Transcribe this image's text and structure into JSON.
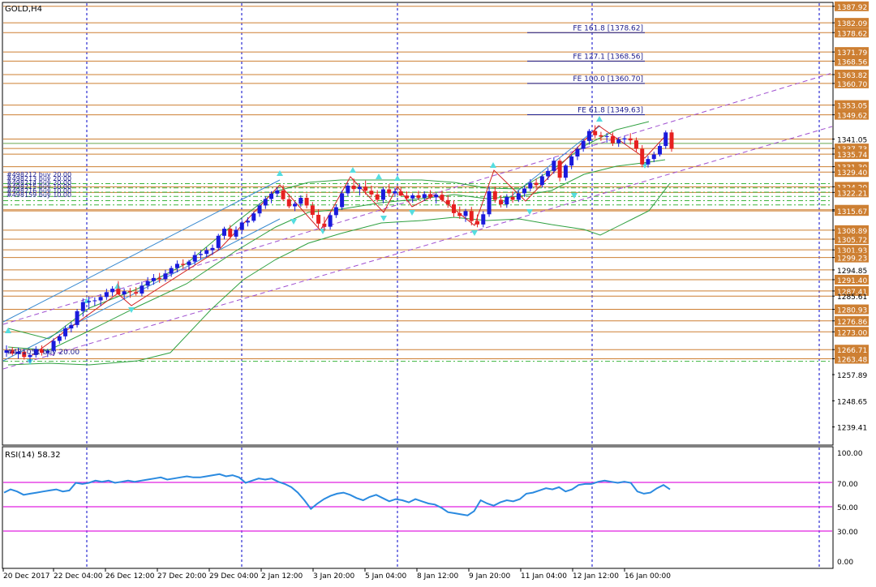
{
  "main_panel": {
    "symbol_label": "GOLD,H4",
    "price_labels": [
      "1387.92",
      "1382.09",
      "1378.62",
      "1371.79",
      "1368.56",
      "1363.82",
      "1360.70",
      "1353.05",
      "1349.62",
      "1341.05",
      "1337.73",
      "1335.74",
      "1331.30",
      "1329.40",
      "1324.20",
      "1322.21",
      "1316.09",
      "1315.67",
      "1308.89",
      "1305.72",
      "1301.93",
      "1299.23",
      "1294.85",
      "1291.40",
      "1287.41",
      "1285.61",
      "1280.93",
      "1276.86",
      "1273.00",
      "1266.71",
      "1263.48",
      "1257.89",
      "1248.65",
      "1239.41"
    ],
    "fibo_labels": [
      "FE 161.8 [1378.62]",
      "FE 127.1 [1368.56]",
      "FE 100.0 [1360.70]",
      "FE 61.8 [1349.63]"
    ],
    "order_labels": [
      "#498212 buy 20.00",
      "#498213 buy 20.00",
      "#498214 buy 20.00",
      "#498215 buy 10.00",
      "#498216 buy 10.00",
      "#498159 buy 10.00"
    ],
    "order_label_bottom": "#481051 buy 20.00"
  },
  "rsi_panel": {
    "label": "RSI(14) 58.32",
    "levels": [
      "100.00",
      "70.00",
      "50.00",
      "30.00",
      "0.00"
    ]
  },
  "time_labels": [
    "20 Dec 2017",
    "22 Dec 04:00",
    "26 Dec 12:00",
    "27 Dec 20:00",
    "29 Dec 04:00",
    "2 Jan 12:00",
    "3 Jan 20:00",
    "5 Jan 04:00",
    "8 Jan 12:00",
    "9 Jan 20:00",
    "11 Jan 04:00",
    "12 Jan 12:00",
    "16 Jan 00:00"
  ],
  "colors": {
    "bull": "#1a1adc",
    "bear": "#e62020",
    "level_line": "#cd7f32",
    "order_line": "#3cb43c",
    "channel": "#a050d0",
    "rsi": "#2a8ae0",
    "rsi_level": "#e020e0",
    "grid": "#0000c8"
  },
  "chart_data": {
    "type": "candlestick",
    "symbol": "GOLD",
    "timeframe": "H4",
    "ylim": [
      1233,
      1389
    ],
    "yticks": [
      1387.92,
      1382.09,
      1378.62,
      1371.79,
      1368.56,
      1363.82,
      1360.7,
      1353.05,
      1349.62,
      1341.05,
      1337.73,
      1335.74,
      1331.3,
      1329.4,
      1324.2,
      1322.21,
      1316.09,
      1315.67,
      1308.89,
      1305.72,
      1301.93,
      1299.23,
      1294.85,
      1291.4,
      1287.41,
      1285.61,
      1280.93,
      1276.86,
      1273.0,
      1266.71,
      1263.48,
      1257.89,
      1248.65,
      1239.41
    ],
    "x_tick_labels": [
      "20 Dec 2017",
      "22 Dec 04:00",
      "26 Dec 12:00",
      "27 Dec 20:00",
      "29 Dec 04:00",
      "2 Jan 12:00",
      "3 Jan 20:00",
      "5 Jan 04:00",
      "8 Jan 12:00",
      "9 Jan 20:00",
      "11 Jan 04:00",
      "12 Jan 12:00",
      "16 Jan 00:00"
    ],
    "candles": [
      [
        1265.6,
        1268.2,
        1264.2,
        1266.5
      ],
      [
        1266.5,
        1267.6,
        1264.6,
        1265.3
      ],
      [
        1265.3,
        1267.4,
        1263.5,
        1266.0
      ],
      [
        1266.0,
        1266.8,
        1263.2,
        1264.1
      ],
      [
        1264.1,
        1265.6,
        1262.3,
        1264.8
      ],
      [
        1264.8,
        1267.9,
        1263.9,
        1266.9
      ],
      [
        1266.9,
        1268.2,
        1264.6,
        1265.6
      ],
      [
        1265.6,
        1267.0,
        1264.1,
        1266.3
      ],
      [
        1266.3,
        1270.7,
        1265.6,
        1269.8
      ],
      [
        1269.8,
        1272.2,
        1268.8,
        1271.4
      ],
      [
        1271.4,
        1275.2,
        1270.3,
        1274.2
      ],
      [
        1274.2,
        1276.4,
        1272.8,
        1275.4
      ],
      [
        1275.4,
        1281.1,
        1274.5,
        1280.3
      ],
      [
        1280.3,
        1284.8,
        1278.4,
        1283.5
      ],
      [
        1283.5,
        1285.5,
        1281.1,
        1283.9
      ],
      [
        1283.9,
        1285.2,
        1282.2,
        1284.1
      ],
      [
        1284.1,
        1286.3,
        1282.1,
        1285.3
      ],
      [
        1285.3,
        1288.2,
        1284.3,
        1287.0
      ],
      [
        1287.0,
        1289.1,
        1285.6,
        1288.2
      ],
      [
        1288.2,
        1290.9,
        1287.0,
        1286.2
      ],
      [
        1286.2,
        1288.3,
        1284.6,
        1287.3
      ],
      [
        1287.3,
        1288.5,
        1285.0,
        1287.0
      ],
      [
        1287.0,
        1288.8,
        1285.8,
        1286.5
      ],
      [
        1286.5,
        1290.7,
        1285.6,
        1289.3
      ],
      [
        1289.3,
        1292.3,
        1288.0,
        1290.9
      ],
      [
        1290.9,
        1293.4,
        1289.6,
        1292.0
      ],
      [
        1292.0,
        1293.8,
        1290.3,
        1291.6
      ],
      [
        1291.6,
        1294.9,
        1290.7,
        1293.6
      ],
      [
        1293.6,
        1296.3,
        1292.4,
        1295.5
      ],
      [
        1295.5,
        1298.2,
        1294.0,
        1297.0
      ],
      [
        1297.0,
        1298.6,
        1295.3,
        1296.6
      ],
      [
        1296.6,
        1298.4,
        1294.9,
        1297.8
      ],
      [
        1297.8,
        1301.3,
        1296.6,
        1300.1
      ],
      [
        1300.1,
        1301.8,
        1298.6,
        1300.5
      ],
      [
        1300.5,
        1302.8,
        1299.3,
        1301.8
      ],
      [
        1301.8,
        1303.8,
        1300.1,
        1302.6
      ],
      [
        1302.6,
        1307.6,
        1301.8,
        1306.9
      ],
      [
        1306.9,
        1310.1,
        1305.6,
        1309.4
      ],
      [
        1309.4,
        1310.7,
        1305.9,
        1306.6
      ],
      [
        1306.6,
        1310.2,
        1305.6,
        1309.0
      ],
      [
        1309.0,
        1312.4,
        1308.1,
        1311.6
      ],
      [
        1311.6,
        1313.4,
        1310.2,
        1312.2
      ],
      [
        1312.2,
        1315.4,
        1311.6,
        1314.8
      ],
      [
        1314.8,
        1318.4,
        1313.6,
        1317.6
      ],
      [
        1317.6,
        1320.8,
        1316.4,
        1319.9
      ],
      [
        1319.9,
        1322.6,
        1318.4,
        1321.8
      ],
      [
        1321.8,
        1324.1,
        1320.6,
        1322.9
      ],
      [
        1322.9,
        1324.8,
        1319.1,
        1319.8
      ],
      [
        1319.8,
        1321.6,
        1316.6,
        1317.3
      ],
      [
        1317.3,
        1319.0,
        1315.6,
        1318.2
      ],
      [
        1318.2,
        1321.2,
        1317.1,
        1320.3
      ],
      [
        1320.3,
        1321.8,
        1316.6,
        1317.6
      ],
      [
        1317.6,
        1318.8,
        1313.1,
        1314.3
      ],
      [
        1314.3,
        1316.3,
        1309.8,
        1311.2
      ],
      [
        1311.2,
        1313.6,
        1308.6,
        1310.1
      ],
      [
        1310.1,
        1315.2,
        1309.1,
        1314.2
      ],
      [
        1314.2,
        1318.0,
        1313.2,
        1317.0
      ],
      [
        1317.0,
        1322.9,
        1316.0,
        1321.9
      ],
      [
        1321.9,
        1325.6,
        1320.9,
        1324.6
      ],
      [
        1324.6,
        1327.1,
        1322.4,
        1323.4
      ],
      [
        1323.4,
        1325.3,
        1321.1,
        1324.2
      ],
      [
        1324.2,
        1326.4,
        1321.5,
        1322.8
      ],
      [
        1322.8,
        1324.6,
        1320.5,
        1321.5
      ],
      [
        1321.5,
        1323.0,
        1318.8,
        1319.6
      ],
      [
        1319.6,
        1324.1,
        1318.4,
        1323.3
      ],
      [
        1323.3,
        1325.2,
        1320.7,
        1321.9
      ],
      [
        1321.9,
        1323.9,
        1320.6,
        1322.6
      ],
      [
        1322.6,
        1324.1,
        1320.9,
        1321.1
      ],
      [
        1321.1,
        1322.6,
        1319.1,
        1320.1
      ],
      [
        1320.1,
        1321.9,
        1318.6,
        1321.2
      ],
      [
        1321.2,
        1322.8,
        1319.4,
        1320.3
      ],
      [
        1320.3,
        1322.6,
        1319.2,
        1321.6
      ],
      [
        1321.6,
        1323.0,
        1319.8,
        1320.5
      ],
      [
        1320.5,
        1322.1,
        1318.3,
        1321.4
      ],
      [
        1321.4,
        1322.8,
        1318.9,
        1319.5
      ],
      [
        1319.5,
        1321.3,
        1316.8,
        1318.0
      ],
      [
        1318.0,
        1319.5,
        1313.6,
        1314.9
      ],
      [
        1314.9,
        1317.2,
        1312.9,
        1313.9
      ],
      [
        1313.9,
        1316.4,
        1311.8,
        1315.6
      ],
      [
        1315.6,
        1317.1,
        1310.6,
        1312.1
      ],
      [
        1312.1,
        1314.4,
        1309.9,
        1310.9
      ],
      [
        1310.9,
        1315.6,
        1309.9,
        1314.5
      ],
      [
        1314.5,
        1324.3,
        1313.6,
        1322.6
      ],
      [
        1322.6,
        1324.3,
        1318.6,
        1319.6
      ],
      [
        1319.6,
        1321.2,
        1316.9,
        1318.0
      ],
      [
        1318.0,
        1321.6,
        1316.8,
        1320.6
      ],
      [
        1320.6,
        1322.6,
        1318.6,
        1319.6
      ],
      [
        1319.6,
        1322.9,
        1318.8,
        1321.9
      ],
      [
        1321.9,
        1324.6,
        1320.6,
        1323.6
      ],
      [
        1323.6,
        1326.9,
        1322.6,
        1325.6
      ],
      [
        1325.6,
        1327.1,
        1323.4,
        1324.8
      ],
      [
        1324.8,
        1328.7,
        1323.9,
        1327.9
      ],
      [
        1327.9,
        1330.8,
        1326.6,
        1329.8
      ],
      [
        1329.8,
        1334.6,
        1328.8,
        1333.4
      ],
      [
        1333.4,
        1334.2,
        1326.1,
        1327.4
      ],
      [
        1327.4,
        1332.2,
        1326.4,
        1331.7
      ],
      [
        1331.7,
        1335.6,
        1330.4,
        1334.9
      ],
      [
        1334.9,
        1338.4,
        1333.6,
        1337.6
      ],
      [
        1337.6,
        1341.2,
        1336.6,
        1340.4
      ],
      [
        1340.4,
        1344.6,
        1339.1,
        1343.9
      ],
      [
        1343.9,
        1345.9,
        1341.4,
        1342.4
      ],
      [
        1342.4,
        1343.6,
        1340.4,
        1341.9
      ],
      [
        1341.9,
        1343.2,
        1339.8,
        1342.1
      ],
      [
        1342.1,
        1343.4,
        1338.6,
        1339.6
      ],
      [
        1339.6,
        1341.6,
        1338.3,
        1340.9
      ],
      [
        1340.9,
        1342.2,
        1339.3,
        1341.3
      ],
      [
        1341.3,
        1343.1,
        1339.1,
        1340.6
      ],
      [
        1340.6,
        1341.6,
        1336.6,
        1337.6
      ],
      [
        1337.6,
        1338.9,
        1331.1,
        1332.1
      ],
      [
        1332.1,
        1335.1,
        1331.0,
        1334.0
      ],
      [
        1334.0,
        1336.6,
        1332.9,
        1335.6
      ],
      [
        1335.6,
        1339.4,
        1334.9,
        1338.6
      ],
      [
        1338.6,
        1344.1,
        1337.6,
        1343.4
      ],
      [
        1343.4,
        1344.4,
        1336.6,
        1337.6
      ]
    ]
  }
}
